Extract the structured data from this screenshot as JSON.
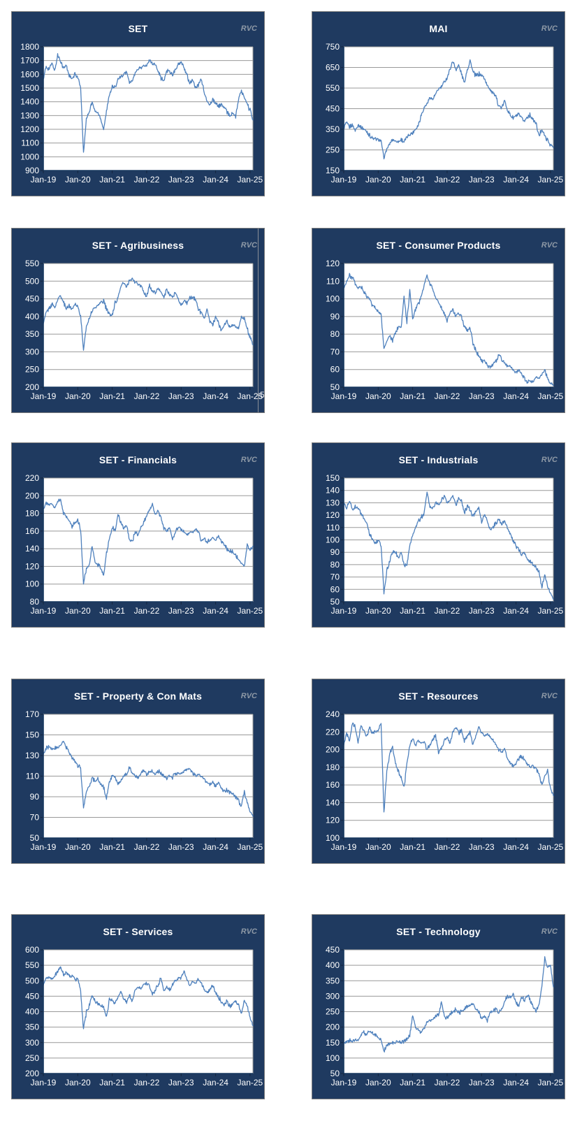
{
  "page": {
    "watermark": "RVC"
  },
  "style": {
    "panel_bg": "#1F3A60",
    "panel_border": "#7E7E7E",
    "line_color": "#4F81BD",
    "grid_color": "#999999",
    "axis_color": "#17375E",
    "tick_color": "#55607000",
    "title_color": "#ffffff",
    "label_color": "#ffffff",
    "rvc_color": "#8E99A6",
    "plot_bg": "#ffffff"
  },
  "x_labels": [
    "Jan-19",
    "Jan-20",
    "Jan-21",
    "Jan-22",
    "Jan-23",
    "Jan-24",
    "Jan-25"
  ],
  "chart_data": [
    {
      "type": "line",
      "title": "SET",
      "watermark": "RVC",
      "ylim": [
        900,
        1800
      ],
      "ystep": 100,
      "grid": true,
      "legend": "none",
      "x_monthly_start": "Jan-19",
      "values": [
        1565,
        1655,
        1640,
        1680,
        1625,
        1740,
        1700,
        1640,
        1665,
        1595,
        1560,
        1600,
        1580,
        1500,
        1025,
        1280,
        1330,
        1400,
        1330,
        1320,
        1280,
        1200,
        1330,
        1450,
        1510,
        1500,
        1570,
        1585,
        1590,
        1620,
        1540,
        1550,
        1610,
        1640,
        1650,
        1660,
        1660,
        1705,
        1680,
        1670,
        1630,
        1570,
        1550,
        1630,
        1620,
        1600,
        1630,
        1670,
        1685,
        1650,
        1600,
        1530,
        1560,
        1500,
        1520,
        1570,
        1470,
        1400,
        1380,
        1420,
        1390,
        1370,
        1380,
        1360,
        1330,
        1300,
        1320,
        1290,
        1420,
        1480,
        1430,
        1380,
        1340,
        1268
      ]
    },
    {
      "type": "line",
      "title": "MAI",
      "watermark": "RVC",
      "ylim": [
        150,
        750
      ],
      "ystep": 100,
      "grid": true,
      "legend": "none",
      "x_monthly_start": "Jan-19",
      "values": [
        360,
        382,
        362,
        372,
        345,
        372,
        360,
        352,
        340,
        320,
        305,
        303,
        300,
        293,
        210,
        255,
        280,
        300,
        293,
        290,
        300,
        290,
        310,
        328,
        332,
        352,
        372,
        420,
        455,
        475,
        505,
        495,
        520,
        545,
        555,
        580,
        600,
        640,
        683,
        640,
        660,
        620,
        575,
        640,
        685,
        628,
        608,
        618,
        612,
        598,
        560,
        545,
        528,
        505,
        465,
        450,
        490,
        445,
        420,
        405,
        415,
        420,
        400,
        390,
        413,
        420,
        395,
        378,
        315,
        352,
        318,
        295,
        275,
        262
      ]
    },
    {
      "type": "line",
      "title": "SET - Agribusiness",
      "watermark": "RVC",
      "ylim": [
        200,
        550
      ],
      "ystep": 50,
      "grid": true,
      "legend": "none",
      "x_monthly_start": "Jan-19",
      "artifact": {
        "line_x": 352,
        "text": "5",
        "text_x": 355,
        "text_y": 231
      },
      "values": [
        380,
        412,
        422,
        436,
        425,
        447,
        462,
        440,
        424,
        430,
        420,
        436,
        430,
        400,
        306,
        372,
        396,
        416,
        426,
        431,
        440,
        445,
        420,
        406,
        402,
        440,
        452,
        486,
        496,
        481,
        501,
        506,
        496,
        491,
        486,
        470,
        456,
        490,
        471,
        466,
        481,
        466,
        456,
        476,
        461,
        456,
        466,
        450,
        431,
        446,
        436,
        451,
        456,
        450,
        421,
        411,
        396,
        421,
        386,
        376,
        400,
        381,
        361,
        376,
        386,
        371,
        376,
        371,
        366,
        399,
        394,
        366,
        341,
        320
      ]
    },
    {
      "type": "line",
      "title": "SET - Consumer Products",
      "watermark": "RVC",
      "ylim": [
        50,
        120
      ],
      "ystep": 10,
      "grid": true,
      "legend": "none",
      "x_monthly_start": "Jan-19",
      "values": [
        106,
        110,
        113,
        112,
        108,
        106,
        107,
        104,
        101,
        100,
        96,
        95,
        93,
        91,
        72,
        76,
        79,
        76,
        81,
        84,
        84,
        101,
        87,
        105,
        89,
        94,
        97,
        101,
        108,
        113,
        109,
        105,
        101,
        98,
        95,
        92,
        88,
        92,
        94,
        90,
        92,
        90,
        84,
        82,
        84,
        75,
        71,
        68,
        65,
        64,
        62,
        61,
        63,
        65,
        68,
        66,
        64,
        62,
        62,
        60,
        58,
        60,
        57,
        55,
        53,
        54,
        53,
        56,
        55,
        57,
        60,
        55,
        52,
        51
      ]
    },
    {
      "type": "line",
      "title": "SET - Financials",
      "watermark": "RVC",
      "ylim": [
        80,
        220
      ],
      "ystep": 20,
      "grid": true,
      "legend": "none",
      "x_monthly_start": "Jan-19",
      "values": [
        185,
        192,
        189,
        191,
        187,
        193,
        196,
        180,
        176,
        172,
        165,
        170,
        172,
        162,
        99,
        118,
        122,
        143,
        125,
        122,
        118,
        110,
        135,
        150,
        165,
        160,
        178,
        170,
        163,
        167,
        150,
        147,
        160,
        155,
        165,
        170,
        178,
        183,
        191,
        178,
        182,
        175,
        163,
        160,
        165,
        150,
        158,
        165,
        162,
        160,
        155,
        158,
        160,
        162,
        159,
        148,
        152,
        148,
        150,
        152,
        150,
        155,
        148,
        145,
        140,
        138,
        136,
        133,
        128,
        124,
        120,
        144,
        139,
        143
      ]
    },
    {
      "type": "line",
      "title": "SET - Industrials",
      "watermark": "RVC",
      "ylim": [
        50,
        150
      ],
      "ystep": 10,
      "grid": true,
      "legend": "none",
      "x_monthly_start": "Jan-19",
      "values": [
        130,
        126,
        132,
        125,
        127,
        125,
        122,
        117,
        113,
        105,
        100,
        97,
        100,
        95,
        57,
        75,
        83,
        90,
        91,
        85,
        90,
        80,
        79,
        95,
        103,
        110,
        115,
        118,
        122,
        138,
        127,
        125,
        130,
        128,
        132,
        135,
        130,
        132,
        136,
        128,
        134,
        131,
        122,
        127,
        125,
        119,
        122,
        126,
        115,
        121,
        115,
        108,
        110,
        114,
        116,
        113,
        115,
        110,
        104,
        100,
        95,
        92,
        88,
        90,
        85,
        82,
        80,
        78,
        74,
        62,
        72,
        63,
        57,
        52
      ]
    },
    {
      "type": "line",
      "title": "SET - Property & Con Mats",
      "watermark": "RVC",
      "ylim": [
        50,
        170
      ],
      "ystep": 20,
      "grid": true,
      "legend": "none",
      "x_monthly_start": "Jan-19",
      "values": [
        131,
        137,
        138,
        136,
        138,
        137,
        140,
        145,
        138,
        133,
        128,
        124,
        120,
        118,
        79,
        95,
        100,
        108,
        105,
        107,
        103,
        99,
        89,
        105,
        110,
        108,
        103,
        105,
        110,
        113,
        118,
        112,
        110,
        108,
        113,
        115,
        112,
        114,
        116,
        113,
        115,
        112,
        110,
        108,
        110,
        109,
        112,
        113,
        112,
        115,
        116,
        118,
        113,
        110,
        112,
        110,
        107,
        104,
        102,
        104,
        100,
        104,
        98,
        95,
        97,
        94,
        93,
        90,
        86,
        81,
        95,
        84,
        76,
        71
      ]
    },
    {
      "type": "line",
      "title": "SET - Resources",
      "watermark": "RVC",
      "ylim": [
        100,
        240
      ],
      "ystep": 20,
      "grid": true,
      "legend": "none",
      "x_monthly_start": "Jan-19",
      "values": [
        205,
        218,
        210,
        230,
        225,
        208,
        228,
        220,
        215,
        225,
        218,
        220,
        222,
        230,
        129,
        175,
        195,
        203,
        185,
        175,
        168,
        157,
        185,
        205,
        212,
        205,
        210,
        207,
        208,
        200,
        205,
        212,
        215,
        196,
        202,
        210,
        215,
        207,
        220,
        226,
        218,
        222,
        210,
        214,
        220,
        205,
        215,
        225,
        220,
        216,
        218,
        214,
        210,
        205,
        200,
        196,
        202,
        190,
        185,
        181,
        185,
        190,
        193,
        188,
        183,
        180,
        181,
        178,
        172,
        160,
        170,
        176,
        156,
        148
      ]
    },
    {
      "type": "line",
      "title": "SET - Services",
      "watermark": "RVC",
      "ylim": [
        200,
        600
      ],
      "ystep": 50,
      "grid": true,
      "legend": "none",
      "x_monthly_start": "Jan-19",
      "values": [
        485,
        508,
        512,
        506,
        516,
        530,
        545,
        522,
        526,
        515,
        520,
        505,
        505,
        470,
        342,
        400,
        420,
        456,
        432,
        426,
        420,
        415,
        382,
        440,
        437,
        427,
        447,
        465,
        442,
        430,
        452,
        436,
        470,
        480,
        476,
        490,
        494,
        481,
        456,
        470,
        490,
        506,
        466,
        480,
        472,
        490,
        500,
        506,
        510,
        530,
        506,
        481,
        500,
        490,
        506,
        490,
        476,
        461,
        470,
        486,
        462,
        447,
        432,
        421,
        436,
        416,
        428,
        433,
        420,
        392,
        436,
        420,
        380,
        355
      ]
    },
    {
      "type": "line",
      "title": "SET - Technology",
      "watermark": "RVC",
      "ylim": [
        50,
        450
      ],
      "ystep": 50,
      "grid": true,
      "legend": "none",
      "x_monthly_start": "Jan-19",
      "values": [
        148,
        156,
        158,
        154,
        160,
        156,
        175,
        181,
        178,
        186,
        181,
        174,
        165,
        159,
        122,
        140,
        146,
        151,
        149,
        155,
        151,
        156,
        161,
        176,
        240,
        200,
        188,
        183,
        196,
        216,
        221,
        226,
        236,
        241,
        275,
        236,
        231,
        241,
        251,
        256,
        246,
        251,
        256,
        266,
        271,
        276,
        256,
        251,
        226,
        236,
        221,
        246,
        251,
        256,
        246,
        261,
        281,
        301,
        296,
        306,
        280,
        270,
        300,
        285,
        305,
        285,
        265,
        252,
        270,
        330,
        422,
        390,
        400,
        330
      ]
    }
  ]
}
